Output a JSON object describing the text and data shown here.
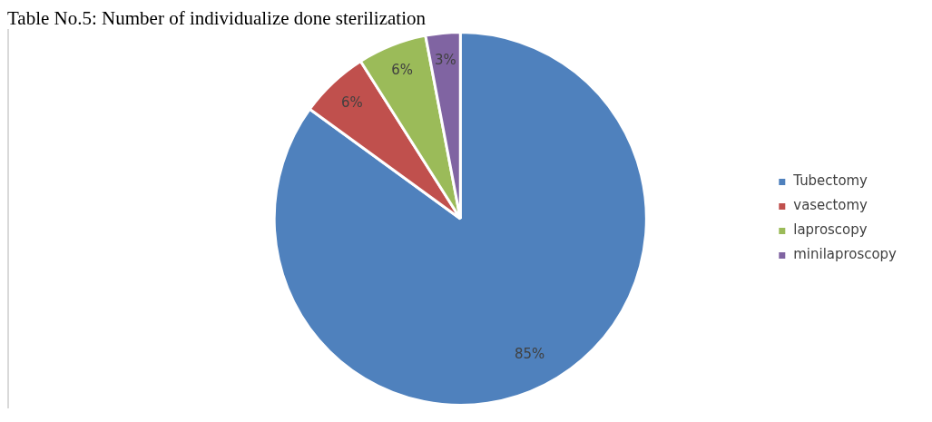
{
  "chart_data": {
    "type": "pie",
    "title": "Table No.5: Number of individualize done sterilization",
    "categories": [
      "Tubectomy",
      "vasectomy",
      "laproscopy",
      "minilaproscopy"
    ],
    "values": [
      85,
      6,
      6,
      3
    ],
    "value_labels": [
      "85%",
      "6%",
      "6%",
      "3%"
    ],
    "colors": [
      "#4f81bd",
      "#c0504d",
      "#9bbb59",
      "#8064a2"
    ],
    "legend": "right"
  }
}
